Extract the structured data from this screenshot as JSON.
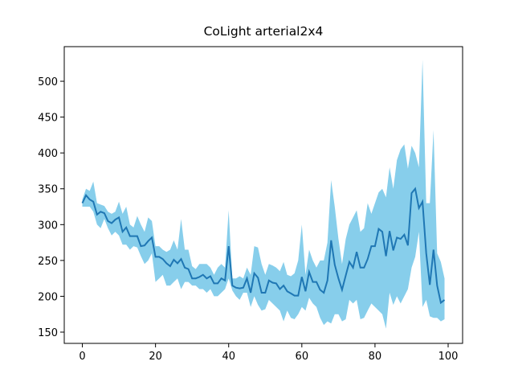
{
  "chart_data": {
    "type": "line",
    "title": "CoLight arterial2x4",
    "x": [
      0,
      1,
      2,
      3,
      4,
      5,
      6,
      7,
      8,
      9,
      10,
      11,
      12,
      13,
      14,
      15,
      16,
      17,
      18,
      19,
      20,
      21,
      22,
      23,
      24,
      25,
      26,
      27,
      28,
      29,
      30,
      31,
      32,
      33,
      34,
      35,
      36,
      37,
      38,
      39,
      40,
      41,
      42,
      43,
      44,
      45,
      46,
      47,
      48,
      49,
      50,
      51,
      52,
      53,
      54,
      55,
      56,
      57,
      58,
      59,
      60,
      61,
      62,
      63,
      64,
      65,
      66,
      67,
      68,
      69,
      70,
      71,
      72,
      73,
      74,
      75,
      76,
      77,
      78,
      79,
      80,
      81,
      82,
      83,
      84,
      85,
      86,
      87,
      88,
      89,
      90,
      91,
      92,
      93,
      94,
      95,
      96,
      97,
      98,
      99
    ],
    "series": [
      {
        "color": "#1f77b4",
        "values": [
          330,
          341,
          335,
          332,
          314,
          318,
          316,
          305,
          302,
          307,
          310,
          290,
          296,
          284,
          284,
          284,
          270,
          271,
          277,
          282,
          255,
          255,
          252,
          246,
          242,
          251,
          246,
          252,
          240,
          238,
          225,
          225,
          227,
          230,
          225,
          228,
          218,
          218,
          225,
          222,
          270,
          215,
          212,
          211,
          212,
          225,
          205,
          232,
          226,
          205,
          205,
          222,
          219,
          218,
          210,
          215,
          207,
          204,
          201,
          201,
          227,
          207,
          234,
          220,
          220,
          209,
          205,
          222,
          278,
          244,
          225,
          209,
          229,
          248,
          240,
          262,
          240,
          240,
          252,
          270,
          270,
          294,
          290,
          256,
          291,
          264,
          282,
          280,
          286,
          271,
          344,
          350,
          323,
          332,
          260,
          216,
          265,
          215,
          191,
          195
        ]
      }
    ],
    "band": {
      "color": "#87ceeb",
      "upper": [
        335,
        350,
        347,
        360,
        330,
        328,
        326,
        318,
        315,
        318,
        332,
        315,
        325,
        300,
        296,
        312,
        300,
        290,
        310,
        305,
        270,
        270,
        265,
        262,
        265,
        278,
        265,
        308,
        265,
        265,
        242,
        238,
        245,
        245,
        245,
        240,
        230,
        240,
        245,
        240,
        320,
        225,
        225,
        228,
        225,
        240,
        230,
        270,
        268,
        245,
        230,
        245,
        243,
        240,
        235,
        248,
        230,
        228,
        232,
        250,
        300,
        230,
        265,
        250,
        240,
        250,
        250,
        275,
        362,
        325,
        280,
        245,
        280,
        300,
        310,
        320,
        290,
        295,
        330,
        315,
        330,
        345,
        350,
        338,
        380,
        350,
        390,
        405,
        412,
        378,
        410,
        400,
        380,
        530,
        330,
        330,
        432,
        260,
        248,
        225
      ],
      "lower": [
        325,
        325,
        325,
        318,
        300,
        295,
        308,
        295,
        285,
        290,
        285,
        272,
        272,
        265,
        270,
        268,
        256,
        245,
        250,
        260,
        220,
        225,
        230,
        215,
        215,
        220,
        225,
        210,
        220,
        220,
        215,
        215,
        210,
        210,
        205,
        210,
        200,
        200,
        205,
        210,
        225,
        208,
        200,
        195,
        205,
        205,
        185,
        200,
        188,
        180,
        182,
        195,
        190,
        185,
        180,
        165,
        180,
        170,
        168,
        175,
        185,
        180,
        198,
        190,
        185,
        170,
        160,
        165,
        162,
        175,
        175,
        165,
        168,
        195,
        190,
        195,
        168,
        170,
        180,
        190,
        185,
        180,
        175,
        155,
        205,
        188,
        200,
        190,
        200,
        210,
        240,
        255,
        290,
        185,
        195,
        172,
        170,
        170,
        165,
        168
      ]
    },
    "xlim": [
      -4.95,
      103.95
    ],
    "ylim": [
      134.3,
      548.3
    ],
    "xticks": [
      0,
      20,
      40,
      60,
      80,
      100
    ],
    "yticks": [
      150,
      200,
      250,
      300,
      350,
      400,
      450,
      500
    ]
  }
}
